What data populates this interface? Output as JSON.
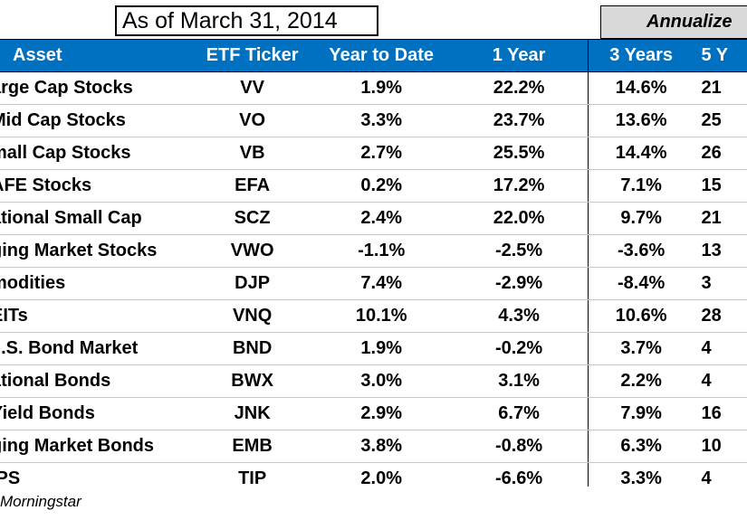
{
  "title": "As of March 31, 2014",
  "annualized_label": "Annualize",
  "headers": {
    "asset": "Asset",
    "ticker": "ETF Ticker",
    "ytd": "Year to Date",
    "one_year": "1 Year",
    "three_years": "3 Years",
    "five_years": "5 Y"
  },
  "rows": [
    {
      "asset": "arge Cap Stocks",
      "ticker": "VV",
      "ytd": "1.9%",
      "one_year": "22.2%",
      "three_years": "14.6%",
      "five_years": "21"
    },
    {
      "asset": "Mid Cap Stocks",
      "ticker": "VO",
      "ytd": "3.3%",
      "one_year": "23.7%",
      "three_years": "13.6%",
      "five_years": "25"
    },
    {
      "asset": "mall Cap Stocks",
      "ticker": "VB",
      "ytd": "2.7%",
      "one_year": "25.5%",
      "three_years": "14.4%",
      "five_years": "26"
    },
    {
      "asset": "AFE Stocks",
      "ticker": "EFA",
      "ytd": "0.2%",
      "one_year": "17.2%",
      "three_years": "7.1%",
      "five_years": "15"
    },
    {
      "asset": "ational Small Cap",
      "ticker": "SCZ",
      "ytd": "2.4%",
      "one_year": "22.0%",
      "three_years": "9.7%",
      "five_years": "21"
    },
    {
      "asset": "ging Market Stocks",
      "ticker": "VWO",
      "ytd": "-1.1%",
      "one_year": "-2.5%",
      "three_years": "-3.6%",
      "five_years": "13"
    },
    {
      "asset": "modities",
      "ticker": "DJP",
      "ytd": "7.4%",
      "one_year": "-2.9%",
      "three_years": "-8.4%",
      "five_years": "3"
    },
    {
      "asset": "EITs",
      "ticker": "VNQ",
      "ytd": "10.1%",
      "one_year": "4.3%",
      "three_years": "10.6%",
      "five_years": "28"
    },
    {
      "asset": "J.S. Bond Market",
      "ticker": "BND",
      "ytd": "1.9%",
      "one_year": "-0.2%",
      "three_years": "3.7%",
      "five_years": "4"
    },
    {
      "asset": "ational Bonds",
      "ticker": "BWX",
      "ytd": "3.0%",
      "one_year": "3.1%",
      "three_years": "2.2%",
      "five_years": "4"
    },
    {
      "asset": "Yield Bonds",
      "ticker": "JNK",
      "ytd": "2.9%",
      "one_year": "6.7%",
      "three_years": "7.9%",
      "five_years": "16"
    },
    {
      "asset": "ging Market Bonds",
      "ticker": "EMB",
      "ytd": "3.8%",
      "one_year": "-0.8%",
      "three_years": "6.3%",
      "five_years": "10"
    },
    {
      "asset": "IPS",
      "ticker": "TIP",
      "ytd": "2.0%",
      "one_year": "-6.6%",
      "three_years": "3.3%",
      "five_years": "4"
    }
  ],
  "source": "Morningstar",
  "colors": {
    "header_bg": "#0070c0",
    "annualized_bg": "#d9d9d9"
  }
}
